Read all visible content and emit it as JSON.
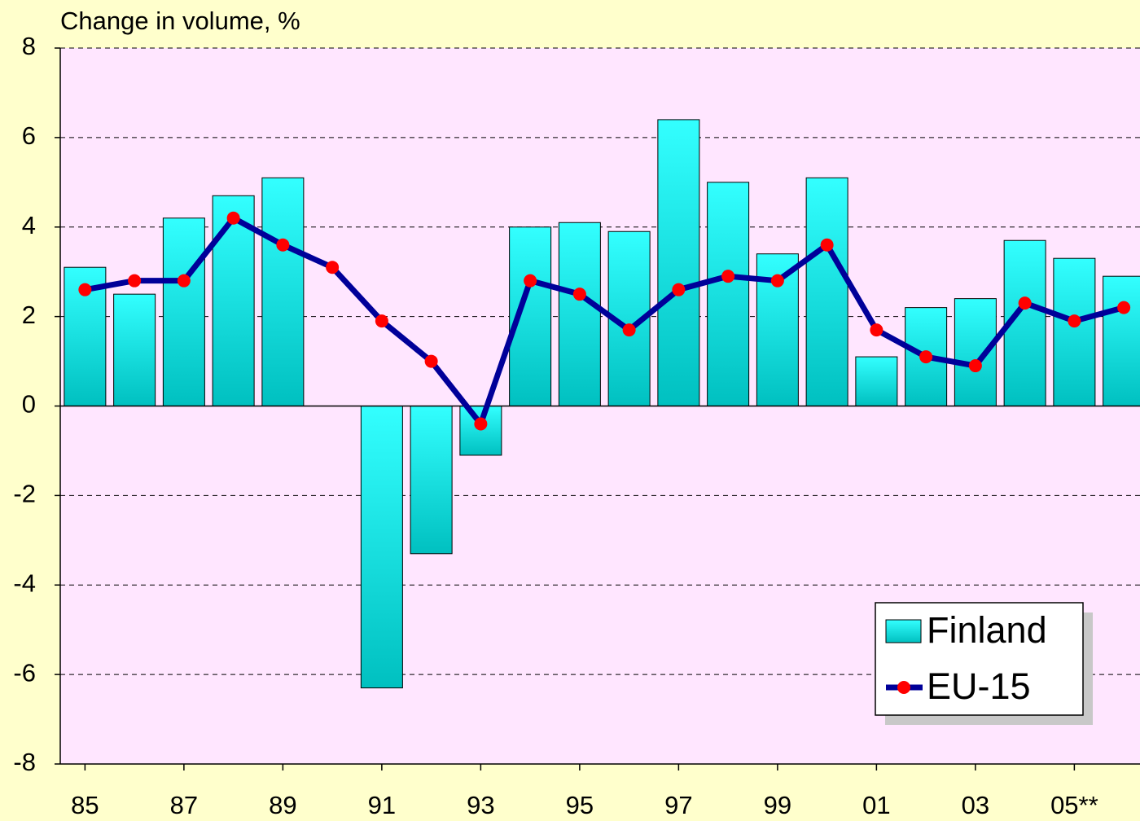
{
  "chart_data": {
    "type": "bar_line",
    "title": "Change in volume, %",
    "categories": [
      "85",
      null,
      "87",
      null,
      "89",
      null,
      "91",
      null,
      "93",
      null,
      "95",
      null,
      "97",
      null,
      "99",
      null,
      "01",
      null,
      "03",
      null,
      "05**",
      null
    ],
    "series": [
      {
        "name": "Finland",
        "type": "bar",
        "color": "#00c8c8",
        "values": [
          3.1,
          2.5,
          4.2,
          4.7,
          5.1,
          0,
          -6.3,
          -3.3,
          -1.1,
          4.0,
          4.1,
          3.9,
          6.4,
          5.0,
          3.4,
          5.1,
          1.1,
          2.2,
          2.4,
          3.7,
          3.3,
          2.9
        ]
      },
      {
        "name": "EU-15",
        "type": "line",
        "color": "#000099",
        "marker_color": "#ff0000",
        "values": [
          2.6,
          2.8,
          2.8,
          4.2,
          3.6,
          3.1,
          1.9,
          1.0,
          -0.4,
          2.8,
          2.5,
          1.7,
          2.6,
          2.9,
          2.8,
          3.6,
          1.7,
          1.1,
          0.9,
          2.3,
          1.9,
          2.2
        ]
      }
    ],
    "ylim": [
      -8,
      8
    ],
    "yticks": [
      -8,
      -6,
      -4,
      -2,
      0,
      2,
      4,
      6,
      8
    ],
    "grid": true,
    "legend": "bottom-right"
  }
}
